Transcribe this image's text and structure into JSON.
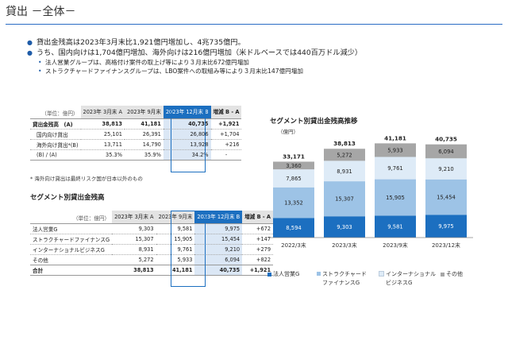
{
  "title": "貸出 －全体－",
  "bullets": [
    {
      "text": "貸出金残高は2023年3月末比1,921億円増加し、4兆735億円。"
    },
    {
      "text": "うち、国内向けは1,704億円増加、海外向けは216億円増加（米ドルベースでは440百万ドル減少）",
      "subs": [
        "法人営業グループは、高格付け案件の取上げ等により３月末比672億円増加",
        "ストラクチャードファイナンスグループは、LBO案件への取組み等により３月末比147億円増加"
      ]
    }
  ],
  "table1": {
    "unit": "（単位：億円）",
    "headers": [
      "2023年 3月末 A",
      "2023年 9月末",
      "2023年 12月末 B",
      "増減 B - A"
    ],
    "rows": [
      {
        "label": "貸出金残高　(A)",
        "a": "38,813",
        "sep": "41,181",
        "b": "40,735",
        "diff": "+1,921"
      },
      {
        "label": "国内向け貸出",
        "a": "25,101",
        "sep": "26,391",
        "b": "26,806",
        "diff": "+1,704"
      },
      {
        "label": "海外向け貸出*(B)",
        "a": "13,711",
        "sep": "14,790",
        "b": "13,928",
        "diff": "+216"
      },
      {
        "label": "(B) / (A)",
        "a": "35.3%",
        "sep": "35.9%",
        "b": "34.2%",
        "diff": "-"
      }
    ],
    "note": "* 海外向け貸出は最終リスク国が日本以外のもの"
  },
  "seg_table_title": "セグメント別貸出金残高",
  "table2": {
    "unit": "（単位：億円）",
    "rows": [
      {
        "label": "法人営業G",
        "a": "9,303",
        "sep": "9,581",
        "b": "9,975",
        "diff": "+672"
      },
      {
        "label": "ストラクチャードファイナンスG",
        "a": "15,307",
        "sep": "15,905",
        "b": "15,454",
        "diff": "+147"
      },
      {
        "label": "インターナショナルビジネスG",
        "a": "8,931",
        "sep": "9,761",
        "b": "9,210",
        "diff": "+279"
      },
      {
        "label": "その他",
        "a": "5,272",
        "sep": "5,933",
        "b": "6,094",
        "diff": "+822"
      },
      {
        "label": "合計",
        "a": "38,813",
        "sep": "41,181",
        "b": "40,735",
        "diff": "+1,921"
      }
    ]
  },
  "chart_data": {
    "type": "bar",
    "stacked": true,
    "title": "セグメント別貸出金残高推移",
    "ylabel": "（億円）",
    "categories": [
      "2022/3末",
      "2023/3末",
      "2023/9末",
      "2023/12末"
    ],
    "totals": [
      "33,171",
      "38,813",
      "41,181",
      "40,735"
    ],
    "series": [
      {
        "name": "法人営業G",
        "color": "#1c6fc0",
        "values": [
          8594,
          9303,
          9581,
          9975
        ]
      },
      {
        "name": "ストラクチャードファイナンスG",
        "color": "#9dc3e6",
        "values": [
          13352,
          15307,
          15905,
          15454
        ]
      },
      {
        "name": "インターナショナルビジネスG",
        "color": "#deebf7",
        "values": [
          7865,
          8931,
          9761,
          9210
        ]
      },
      {
        "name": "その他",
        "color": "#a6a6a6",
        "values": [
          3360,
          5272,
          5933,
          6094
        ]
      }
    ],
    "legend_position": "bottom",
    "grid": false
  }
}
